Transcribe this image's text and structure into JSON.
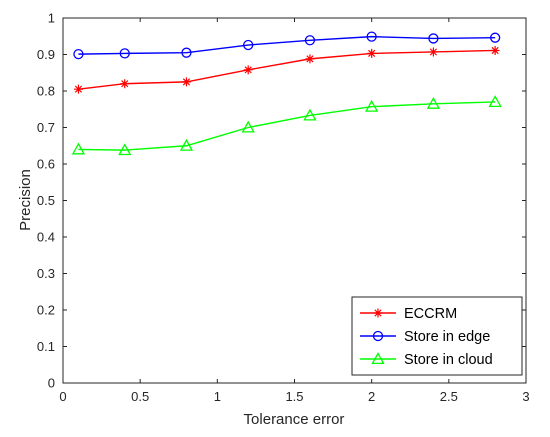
{
  "chart_data": {
    "type": "line",
    "xlabel": "Tolerance error",
    "ylabel": "Precision",
    "xlim": [
      0,
      3
    ],
    "ylim": [
      0,
      1
    ],
    "xticks": [
      "0",
      "0.5",
      "1",
      "1.5",
      "2",
      "2.5",
      "3"
    ],
    "yticks": [
      "0",
      "0.1",
      "0.2",
      "0.3",
      "0.4",
      "0.5",
      "0.6",
      "0.7",
      "0.8",
      "0.9",
      "1"
    ],
    "grid": false,
    "legend_position": "bottom-right",
    "x": [
      0.1,
      0.4,
      0.8,
      1.2,
      1.6,
      2.0,
      2.4,
      2.8
    ],
    "series": [
      {
        "name": "ECCRM",
        "color": "#ff0000",
        "marker": "asterisk",
        "values": [
          0.805,
          0.82,
          0.825,
          0.858,
          0.888,
          0.903,
          0.907,
          0.911
        ]
      },
      {
        "name": "Store in edge",
        "color": "#0000ff",
        "marker": "circle",
        "values": [
          0.901,
          0.903,
          0.905,
          0.926,
          0.939,
          0.949,
          0.944,
          0.946
        ]
      },
      {
        "name": "Store in cloud",
        "color": "#00ff00",
        "marker": "triangle",
        "values": [
          0.64,
          0.638,
          0.65,
          0.7,
          0.733,
          0.757,
          0.765,
          0.77
        ]
      }
    ]
  }
}
